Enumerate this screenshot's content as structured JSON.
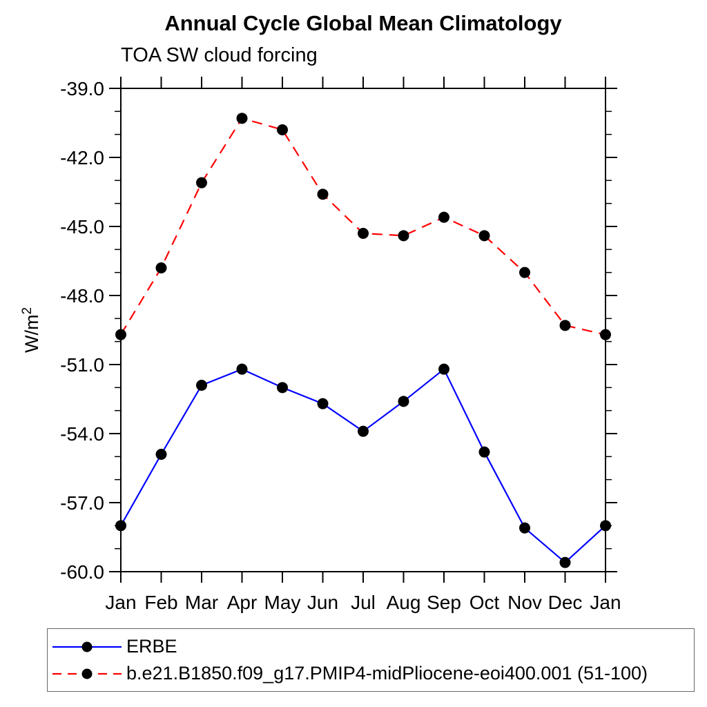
{
  "header": {
    "title": "Annual Cycle Global Mean Climatology",
    "subtitle": "TOA SW cloud forcing"
  },
  "y_axis": {
    "unit_label": "W/m²"
  },
  "legend": {
    "items": [
      {
        "label": "ERBE"
      },
      {
        "label": "b.e21.B1850.f09_g17.PMIP4-midPliocene-eoi400.001 (51-100)"
      }
    ]
  },
  "colors": {
    "erbe_line": "#0000ff",
    "model_line": "#ff0000",
    "marker": "#000000",
    "axis": "#000000",
    "background": "#ffffff"
  },
  "chart_data": {
    "type": "line",
    "title": "Annual Cycle Global Mean Climatology",
    "subtitle": "TOA SW cloud forcing",
    "ylabel": "W/m²",
    "ylabel_main": "W/m",
    "ylabel_sup": "2",
    "categories": [
      "Jan",
      "Feb",
      "Mar",
      "Apr",
      "May",
      "Jun",
      "Jul",
      "Aug",
      "Sep",
      "Oct",
      "Nov",
      "Dec",
      "Jan"
    ],
    "series": [
      {
        "name": "ERBE",
        "color": "#0000ff",
        "line_style": "solid",
        "marker": "black-circle",
        "values": [
          -58.0,
          -54.9,
          -51.9,
          -51.2,
          -52.0,
          -52.7,
          -53.9,
          -52.6,
          -51.2,
          -54.8,
          -58.1,
          -59.6,
          -58.0
        ]
      },
      {
        "name": "b.e21.B1850.f09_g17.PMIP4-midPliocene-eoi400.001 (51-100)",
        "color": "#ff0000",
        "line_style": "dashed",
        "marker": "black-circle",
        "values": [
          -49.7,
          -46.8,
          -43.1,
          -40.3,
          -40.8,
          -43.6,
          -45.3,
          -45.4,
          -44.6,
          -45.4,
          -47.0,
          -49.3,
          -49.7
        ]
      }
    ],
    "ylim": [
      -60.0,
      -39.0
    ],
    "y_major_ticks": [
      -39,
      -42,
      -45,
      -48,
      -51,
      -54,
      -57,
      -60
    ],
    "y_tick_labels": [
      "-39.0",
      "-42.0",
      "-45.0",
      "-48.0",
      "-51.0",
      "-54.0",
      "-57.0",
      "-60.0"
    ],
    "y_minor_step": 1,
    "grid": false,
    "legend_position": "bottom-left-box"
  }
}
